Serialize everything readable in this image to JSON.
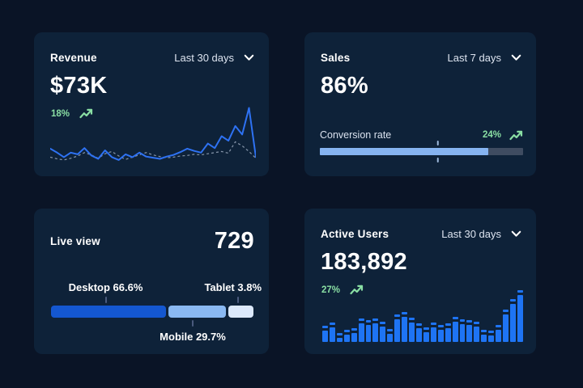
{
  "colors": {
    "page_bg": "#0a1426",
    "card_bg": "#0e2239",
    "accent_blue": "#1e74f4",
    "green": "#8adfa4",
    "white": "#ffffff"
  },
  "cards": {
    "revenue": {
      "title": "Revenue",
      "range": "Last 30 days",
      "value": "$73K",
      "delta": "18%",
      "chart": {
        "type": "line",
        "line_color": "#2e72f3",
        "dashed_color": "#c8d4e6",
        "solid": [
          23,
          16,
          8,
          16,
          13,
          24,
          11,
          5,
          20,
          8,
          3,
          13,
          8,
          16,
          9,
          7,
          5,
          9,
          12,
          17,
          23,
          19,
          16,
          32,
          24,
          45,
          37,
          63,
          48,
          95,
          8
        ],
        "dashed": [
          8,
          5,
          3,
          6,
          10,
          16,
          12,
          6,
          14,
          18,
          10,
          4,
          8,
          12,
          16,
          12,
          9,
          7,
          8,
          10,
          11,
          13,
          12,
          14,
          16,
          18,
          15,
          35,
          28,
          18,
          6
        ]
      }
    },
    "sales": {
      "title": "Sales",
      "range": "Last 7 days",
      "value": "86%",
      "metric_label": "Conversion rate",
      "delta": "24%",
      "progress": {
        "fill_pct": 83,
        "marker_pct": 58,
        "fill_color": "#86b4f1",
        "track_color": "#3f4c61"
      }
    },
    "live_view": {
      "title": "Live view",
      "value": "729",
      "segments": [
        {
          "name": "desktop",
          "label": "Desktop 66.6%",
          "pct": 66.6,
          "visual_pct": 57,
          "color": "#1457d0",
          "label_pos": "top",
          "tick_pct": 27
        },
        {
          "name": "mobile",
          "label": "Mobile 29.7%",
          "pct": 29.7,
          "visual_pct": 28.5,
          "color": "#8ab9f2",
          "label_pos": "bottom",
          "tick_pct": 70
        },
        {
          "name": "tablet",
          "label": "Tablet 3.8%",
          "pct": 3.8,
          "visual_pct": 12.5,
          "color": "#dce9fb",
          "label_pos": "top",
          "tick_pct": 92.5
        }
      ]
    },
    "active_users": {
      "title": "Active Users",
      "range": "Last 30 days",
      "value": "183,892",
      "delta": "27%",
      "chart": {
        "type": "bar",
        "bar_color": "#1e74f4",
        "values": [
          20,
          24,
          11,
          15,
          17,
          29,
          27,
          29,
          25,
          16,
          34,
          37,
          30,
          23,
          18,
          24,
          21,
          23,
          31,
          28,
          27,
          25,
          15,
          14,
          21,
          40,
          53,
          64
        ]
      }
    }
  },
  "icons": {
    "trend_up": "trend-up-arrow",
    "chevron_down": "chevron-down"
  }
}
